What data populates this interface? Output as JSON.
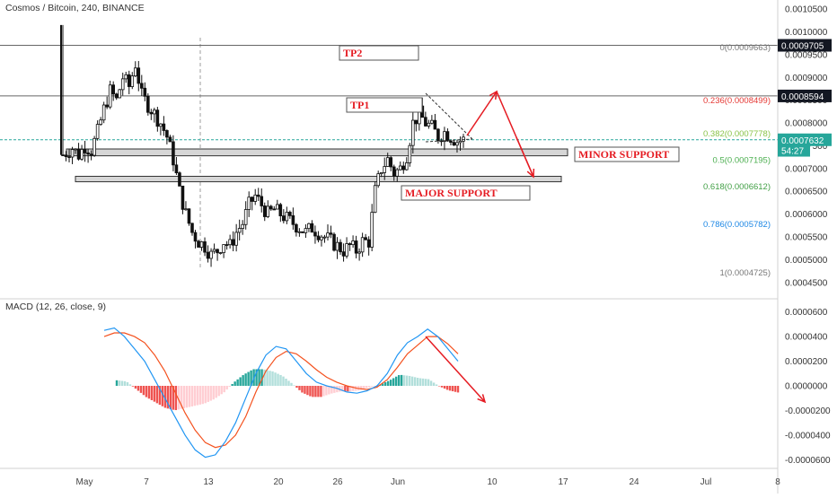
{
  "header": {
    "symbol_title": "Cosmos / Bitcoin, 240, BINANCE",
    "macd_title": "MACD (12, 26, close, 9)"
  },
  "colors": {
    "candle": "#111111",
    "hline": "#787878",
    "current_price_line": "#26a69a",
    "support_band_fill": "#d6d6d6",
    "macd_line": "#2196f3",
    "signal_line": "#f4511e",
    "hist_pos_strong": "#26a69a",
    "hist_pos_weak": "#b2dfdb",
    "hist_neg_strong": "#ef5350",
    "hist_neg_weak": "#ffcdd2",
    "annotation_red": "#e51c23",
    "fib_0": "#787878",
    "fib_0236": "#e53935",
    "fib_0382": "#8bc34a",
    "fib_05": "#4caf50",
    "fib_0618": "#43a047",
    "fib_0786": "#1e88e5",
    "fib_1": "#787878"
  },
  "chart_data": [
    {
      "type": "candlestick",
      "title": "Cosmos / Bitcoin, 240, BINANCE",
      "x_tick_labels": [
        "May",
        "7",
        "13",
        "20",
        "26",
        "Jun",
        "10",
        "17",
        "24",
        "Jul",
        "8"
      ],
      "y_tick_labels": [
        "0.0010500",
        "0.0010000",
        "0.0009500",
        "0.0009000",
        "0.0008500",
        "0.0008000",
        "0.0007500",
        "0.0007000",
        "0.0006500",
        "0.0006000",
        "0.0005500",
        "0.0005000",
        "0.0004500"
      ],
      "ylim": [
        0.00042,
        0.00107
      ],
      "price_tags": [
        {
          "label": "0.0009705",
          "value": 0.0009705,
          "style": "line"
        },
        {
          "label": "0.0008594",
          "value": 0.0008594,
          "style": "line"
        },
        {
          "label": "0.0007632",
          "value": 0.0007632,
          "style": "current"
        },
        {
          "label": "54:27",
          "value": 0.00074,
          "style": "timer"
        }
      ],
      "fibonacci": [
        {
          "label": "0(0.0009663)",
          "value": 0.0009663,
          "colorKey": "fib_0"
        },
        {
          "label": "0.236(0.0008499)",
          "value": 0.0008499,
          "colorKey": "fib_0236"
        },
        {
          "label": "0.382(0.0007778)",
          "value": 0.0007778,
          "colorKey": "fib_0382"
        },
        {
          "label": "0.5(0.0007195)",
          "value": 0.0007195,
          "colorKey": "fib_05"
        },
        {
          "label": "0.618(0.0006612)",
          "value": 0.0006612,
          "colorKey": "fib_0618"
        },
        {
          "label": "0.786(0.0005782)",
          "value": 0.0005782,
          "colorKey": "fib_0786"
        },
        {
          "label": "1(0.0004725)",
          "value": 0.0004725,
          "colorKey": "fib_1"
        }
      ],
      "annotations": [
        {
          "label": "TP2",
          "value": 0.00095
        },
        {
          "label": "TP1",
          "value": 0.00083
        },
        {
          "label": "MINOR SUPPORT",
          "value": 0.00073
        },
        {
          "label": "MAJOR SUPPORT",
          "value": 0.000645
        }
      ],
      "support_bands": [
        {
          "name": "minor",
          "low": 0.000728,
          "high": 0.000743
        },
        {
          "name": "major",
          "low": 0.000671,
          "high": 0.000683
        }
      ],
      "close_path": [
        [
          0,
          0.00073
        ],
        [
          3,
          0.000745
        ],
        [
          5,
          0.00073
        ],
        [
          7,
          0.00075
        ],
        [
          9,
          0.00074
        ],
        [
          11,
          0.00078
        ],
        [
          13,
          0.00083
        ],
        [
          15,
          0.00087
        ],
        [
          17,
          0.00085
        ],
        [
          19,
          0.0009
        ],
        [
          21,
          0.00088
        ],
        [
          23,
          0.00093
        ],
        [
          25,
          0.00086
        ],
        [
          27,
          0.00084
        ],
        [
          29,
          0.00082
        ],
        [
          31,
          0.0008
        ],
        [
          33,
          0.00077
        ],
        [
          35,
          0.00072
        ],
        [
          37,
          0.00065
        ],
        [
          39,
          0.0006
        ],
        [
          41,
          0.00056
        ],
        [
          43,
          0.00054
        ],
        [
          45,
          0.00053
        ],
        [
          47,
          0.00051
        ],
        [
          49,
          0.00052
        ],
        [
          51,
          0.00054
        ],
        [
          53,
          0.00053
        ],
        [
          55,
          0.00056
        ],
        [
          57,
          0.00058
        ],
        [
          59,
          0.00062
        ],
        [
          61,
          0.00064
        ],
        [
          63,
          0.00062
        ],
        [
          65,
          0.0006
        ],
        [
          67,
          0.00061
        ],
        [
          69,
          0.0006
        ],
        [
          71,
          0.00059
        ],
        [
          73,
          0.00058
        ],
        [
          75,
          0.00057
        ],
        [
          77,
          0.00056
        ],
        [
          79,
          0.00057
        ],
        [
          81,
          0.00056
        ],
        [
          83,
          0.00055
        ],
        [
          85,
          0.00054
        ],
        [
          87,
          0.00053
        ],
        [
          89,
          0.00052
        ],
        [
          91,
          0.00053
        ],
        [
          93,
          0.00052
        ],
        [
          95,
          0.00054
        ],
        [
          97,
          0.00054
        ],
        [
          99,
          0.00065
        ],
        [
          101,
          0.0007
        ],
        [
          103,
          0.00072
        ],
        [
          105,
          0.00069
        ],
        [
          107,
          0.0007
        ],
        [
          109,
          0.00073
        ],
        [
          111,
          0.0008
        ],
        [
          113,
          0.00082
        ],
        [
          115,
          0.0008
        ],
        [
          117,
          0.00079
        ],
        [
          119,
          0.00077
        ],
        [
          121,
          0.00078
        ],
        [
          123,
          0.00077
        ],
        [
          125,
          0.00076
        ],
        [
          127,
          0.000763
        ]
      ],
      "candles": {
        "count": 128,
        "x_start": "May 1",
        "interval": "4h"
      }
    },
    {
      "type": "macd",
      "title": "MACD (12, 26, close, 9)",
      "y_tick_labels": [
        "0.0000600",
        "0.0000400",
        "0.0000200",
        "0.0000000",
        "-0.0000200",
        "-0.0000400",
        "-0.0000600"
      ],
      "ylim": [
        -6.7e-05,
        6.7e-05
      ],
      "series": [
        {
          "name": "MACD",
          "colorKey": "macd_line",
          "values": [
            4.5e-05,
            4.7e-05,
            4e-05,
            3e-05,
            2e-05,
            5e-06,
            -1e-05,
            -2.5e-05,
            -4e-05,
            -5.2e-05,
            -5.8e-05,
            -5.6e-05,
            -4.5e-05,
            -3e-05,
            -1e-05,
            1e-05,
            2.5e-05,
            3.2e-05,
            3e-05,
            2e-05,
            1e-05,
            3e-06,
            0.0,
            -2e-06,
            -5e-06,
            -6e-06,
            -4e-06,
            0.0,
            1e-05,
            2.5e-05,
            3.5e-05,
            4e-05,
            4.6e-05,
            4e-05,
            3e-05,
            2e-05
          ]
        },
        {
          "name": "Signal",
          "colorKey": "signal_line",
          "values": [
            4e-05,
            4.3e-05,
            4.3e-05,
            4e-05,
            3.5e-05,
            2.5e-05,
            1.2e-05,
            -5e-06,
            -2.2e-05,
            -3.6e-05,
            -4.6e-05,
            -5e-05,
            -4.8e-05,
            -4e-05,
            -2.5e-05,
            -5e-06,
            1.2e-05,
            2.3e-05,
            2.8e-05,
            2.6e-05,
            2e-05,
            1.3e-05,
            7e-06,
            3e-06,
            0.0,
            -2e-06,
            -3e-06,
            -1e-06,
            5e-06,
            1.5e-05,
            2.6e-05,
            3.3e-05,
            4e-05,
            4e-05,
            3.4e-05,
            2.6e-05
          ]
        }
      ]
    }
  ]
}
